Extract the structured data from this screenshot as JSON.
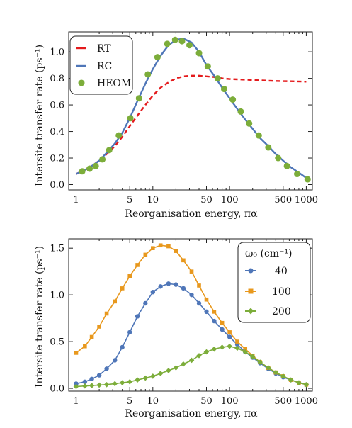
{
  "chart_data": [
    {
      "type": "line",
      "xlabel": "Reorganisation energy, πα",
      "ylabel": "Intersite transfer rate (ps⁻¹)",
      "xscale": "log",
      "xlim": [
        0.8,
        1200
      ],
      "ylim": [
        -0.04,
        1.15
      ],
      "xticks": [
        1,
        5,
        10,
        50,
        100,
        500,
        1000
      ],
      "xtick_labels": [
        "1",
        "5",
        "10",
        "50",
        "100",
        "500",
        "1000"
      ],
      "yticks": [
        0.0,
        0.2,
        0.4,
        0.6,
        0.8,
        1.0
      ],
      "ytick_labels": [
        "0.0",
        "0.2",
        "0.4",
        "0.6",
        "0.8",
        "1.0"
      ],
      "legend_position": "top-left",
      "series": [
        {
          "name": "RT",
          "style": "dashed",
          "color": "#e41a1c",
          "x": [
            1,
            1.3,
            1.6,
            2,
            2.5,
            3.2,
            4,
            5,
            6.3,
            8,
            10,
            12.6,
            16,
            20,
            25,
            32,
            40,
            50,
            63,
            80,
            100,
            160,
            250,
            400,
            630,
            1000
          ],
          "y": [
            0.08,
            0.11,
            0.14,
            0.18,
            0.23,
            0.29,
            0.36,
            0.44,
            0.52,
            0.6,
            0.67,
            0.73,
            0.77,
            0.8,
            0.815,
            0.82,
            0.82,
            0.815,
            0.81,
            0.8,
            0.795,
            0.79,
            0.785,
            0.78,
            0.778,
            0.775
          ]
        },
        {
          "name": "RC",
          "style": "solid",
          "color": "#4f76b8",
          "x": [
            1,
            1.3,
            1.6,
            2,
            2.5,
            3.2,
            4,
            5,
            6.3,
            8,
            10,
            12.6,
            16,
            20,
            25,
            32,
            40,
            50,
            63,
            80,
            100,
            126,
            160,
            200,
            250,
            320,
            400,
            500,
            630,
            800,
            1000
          ],
          "y": [
            0.08,
            0.11,
            0.14,
            0.18,
            0.24,
            0.31,
            0.39,
            0.5,
            0.63,
            0.76,
            0.87,
            0.97,
            1.05,
            1.09,
            1.1,
            1.07,
            1.0,
            0.9,
            0.82,
            0.73,
            0.65,
            0.57,
            0.49,
            0.42,
            0.35,
            0.29,
            0.23,
            0.18,
            0.13,
            0.09,
            0.05
          ]
        },
        {
          "name": "HEOM",
          "style": "markers",
          "color": "#7cad3a",
          "x": [
            1.2,
            1.5,
            1.8,
            2.2,
            2.7,
            3.6,
            5.1,
            6.6,
            8.6,
            11.5,
            15.4,
            19.5,
            24,
            30,
            40,
            52,
            70,
            85,
            110,
            140,
            180,
            240,
            320,
            430,
            560,
            760,
            1040
          ],
          "y": [
            0.1,
            0.12,
            0.14,
            0.19,
            0.26,
            0.37,
            0.5,
            0.65,
            0.83,
            0.96,
            1.06,
            1.09,
            1.08,
            1.05,
            0.99,
            0.89,
            0.8,
            0.72,
            0.64,
            0.55,
            0.46,
            0.37,
            0.28,
            0.2,
            0.14,
            0.08,
            0.04
          ]
        }
      ]
    },
    {
      "type": "line",
      "xlabel": "Reorganisation energy, πα",
      "ylabel": "Intersite transfer rate (ps⁻¹)",
      "xscale": "log",
      "xlim": [
        0.8,
        1200
      ],
      "ylim": [
        -0.03,
        1.6
      ],
      "xticks": [
        1,
        5,
        10,
        50,
        100,
        500,
        1000
      ],
      "xtick_labels": [
        "1",
        "5",
        "10",
        "50",
        "100",
        "500",
        "1000"
      ],
      "yticks": [
        0.0,
        0.5,
        1.0,
        1.5
      ],
      "ytick_labels": [
        "0.0",
        "0.5",
        "1.0",
        "1.5"
      ],
      "legend_title": "ω₀ (cm⁻¹)",
      "legend_position": "top-right",
      "series": [
        {
          "name": "40",
          "marker": "circle",
          "color": "#4f76b8",
          "x": [
            1,
            1.3,
            1.6,
            2,
            2.5,
            3.2,
            4,
            5,
            6.3,
            8,
            10,
            12.6,
            16,
            20,
            25,
            32,
            40,
            50,
            63,
            80,
            100,
            126,
            160,
            200,
            250,
            320,
            400,
            500,
            630,
            800,
            1000
          ],
          "y": [
            0.05,
            0.07,
            0.1,
            0.14,
            0.21,
            0.3,
            0.44,
            0.6,
            0.77,
            0.91,
            1.03,
            1.09,
            1.12,
            1.11,
            1.07,
            1.0,
            0.91,
            0.82,
            0.72,
            0.63,
            0.55,
            0.47,
            0.39,
            0.33,
            0.27,
            0.21,
            0.16,
            0.12,
            0.09,
            0.06,
            0.04
          ]
        },
        {
          "name": "100",
          "marker": "square",
          "color": "#e8981d",
          "x": [
            1,
            1.3,
            1.6,
            2,
            2.5,
            3.2,
            4,
            5,
            6.3,
            8,
            10,
            12.6,
            16,
            20,
            25,
            32,
            40,
            50,
            63,
            80,
            100,
            126,
            160,
            200,
            250,
            320,
            400,
            500,
            630,
            800,
            1000
          ],
          "y": [
            0.38,
            0.45,
            0.55,
            0.66,
            0.8,
            0.93,
            1.07,
            1.2,
            1.32,
            1.43,
            1.5,
            1.53,
            1.52,
            1.47,
            1.37,
            1.25,
            1.1,
            0.95,
            0.82,
            0.7,
            0.6,
            0.5,
            0.42,
            0.35,
            0.28,
            0.22,
            0.17,
            0.13,
            0.09,
            0.06,
            0.04
          ]
        },
        {
          "name": "200",
          "marker": "diamond",
          "color": "#7cad3a",
          "x": [
            1,
            1.3,
            1.6,
            2,
            2.5,
            3.2,
            4,
            5,
            6.3,
            8,
            10,
            12.6,
            16,
            20,
            25,
            32,
            40,
            50,
            63,
            80,
            100,
            126,
            160,
            200,
            250,
            320,
            400,
            500,
            630,
            800,
            1000
          ],
          "y": [
            0.02,
            0.025,
            0.03,
            0.035,
            0.04,
            0.05,
            0.06,
            0.07,
            0.09,
            0.11,
            0.13,
            0.16,
            0.19,
            0.22,
            0.26,
            0.3,
            0.35,
            0.39,
            0.42,
            0.44,
            0.45,
            0.43,
            0.39,
            0.34,
            0.28,
            0.22,
            0.17,
            0.13,
            0.09,
            0.06,
            0.04
          ]
        }
      ]
    }
  ]
}
